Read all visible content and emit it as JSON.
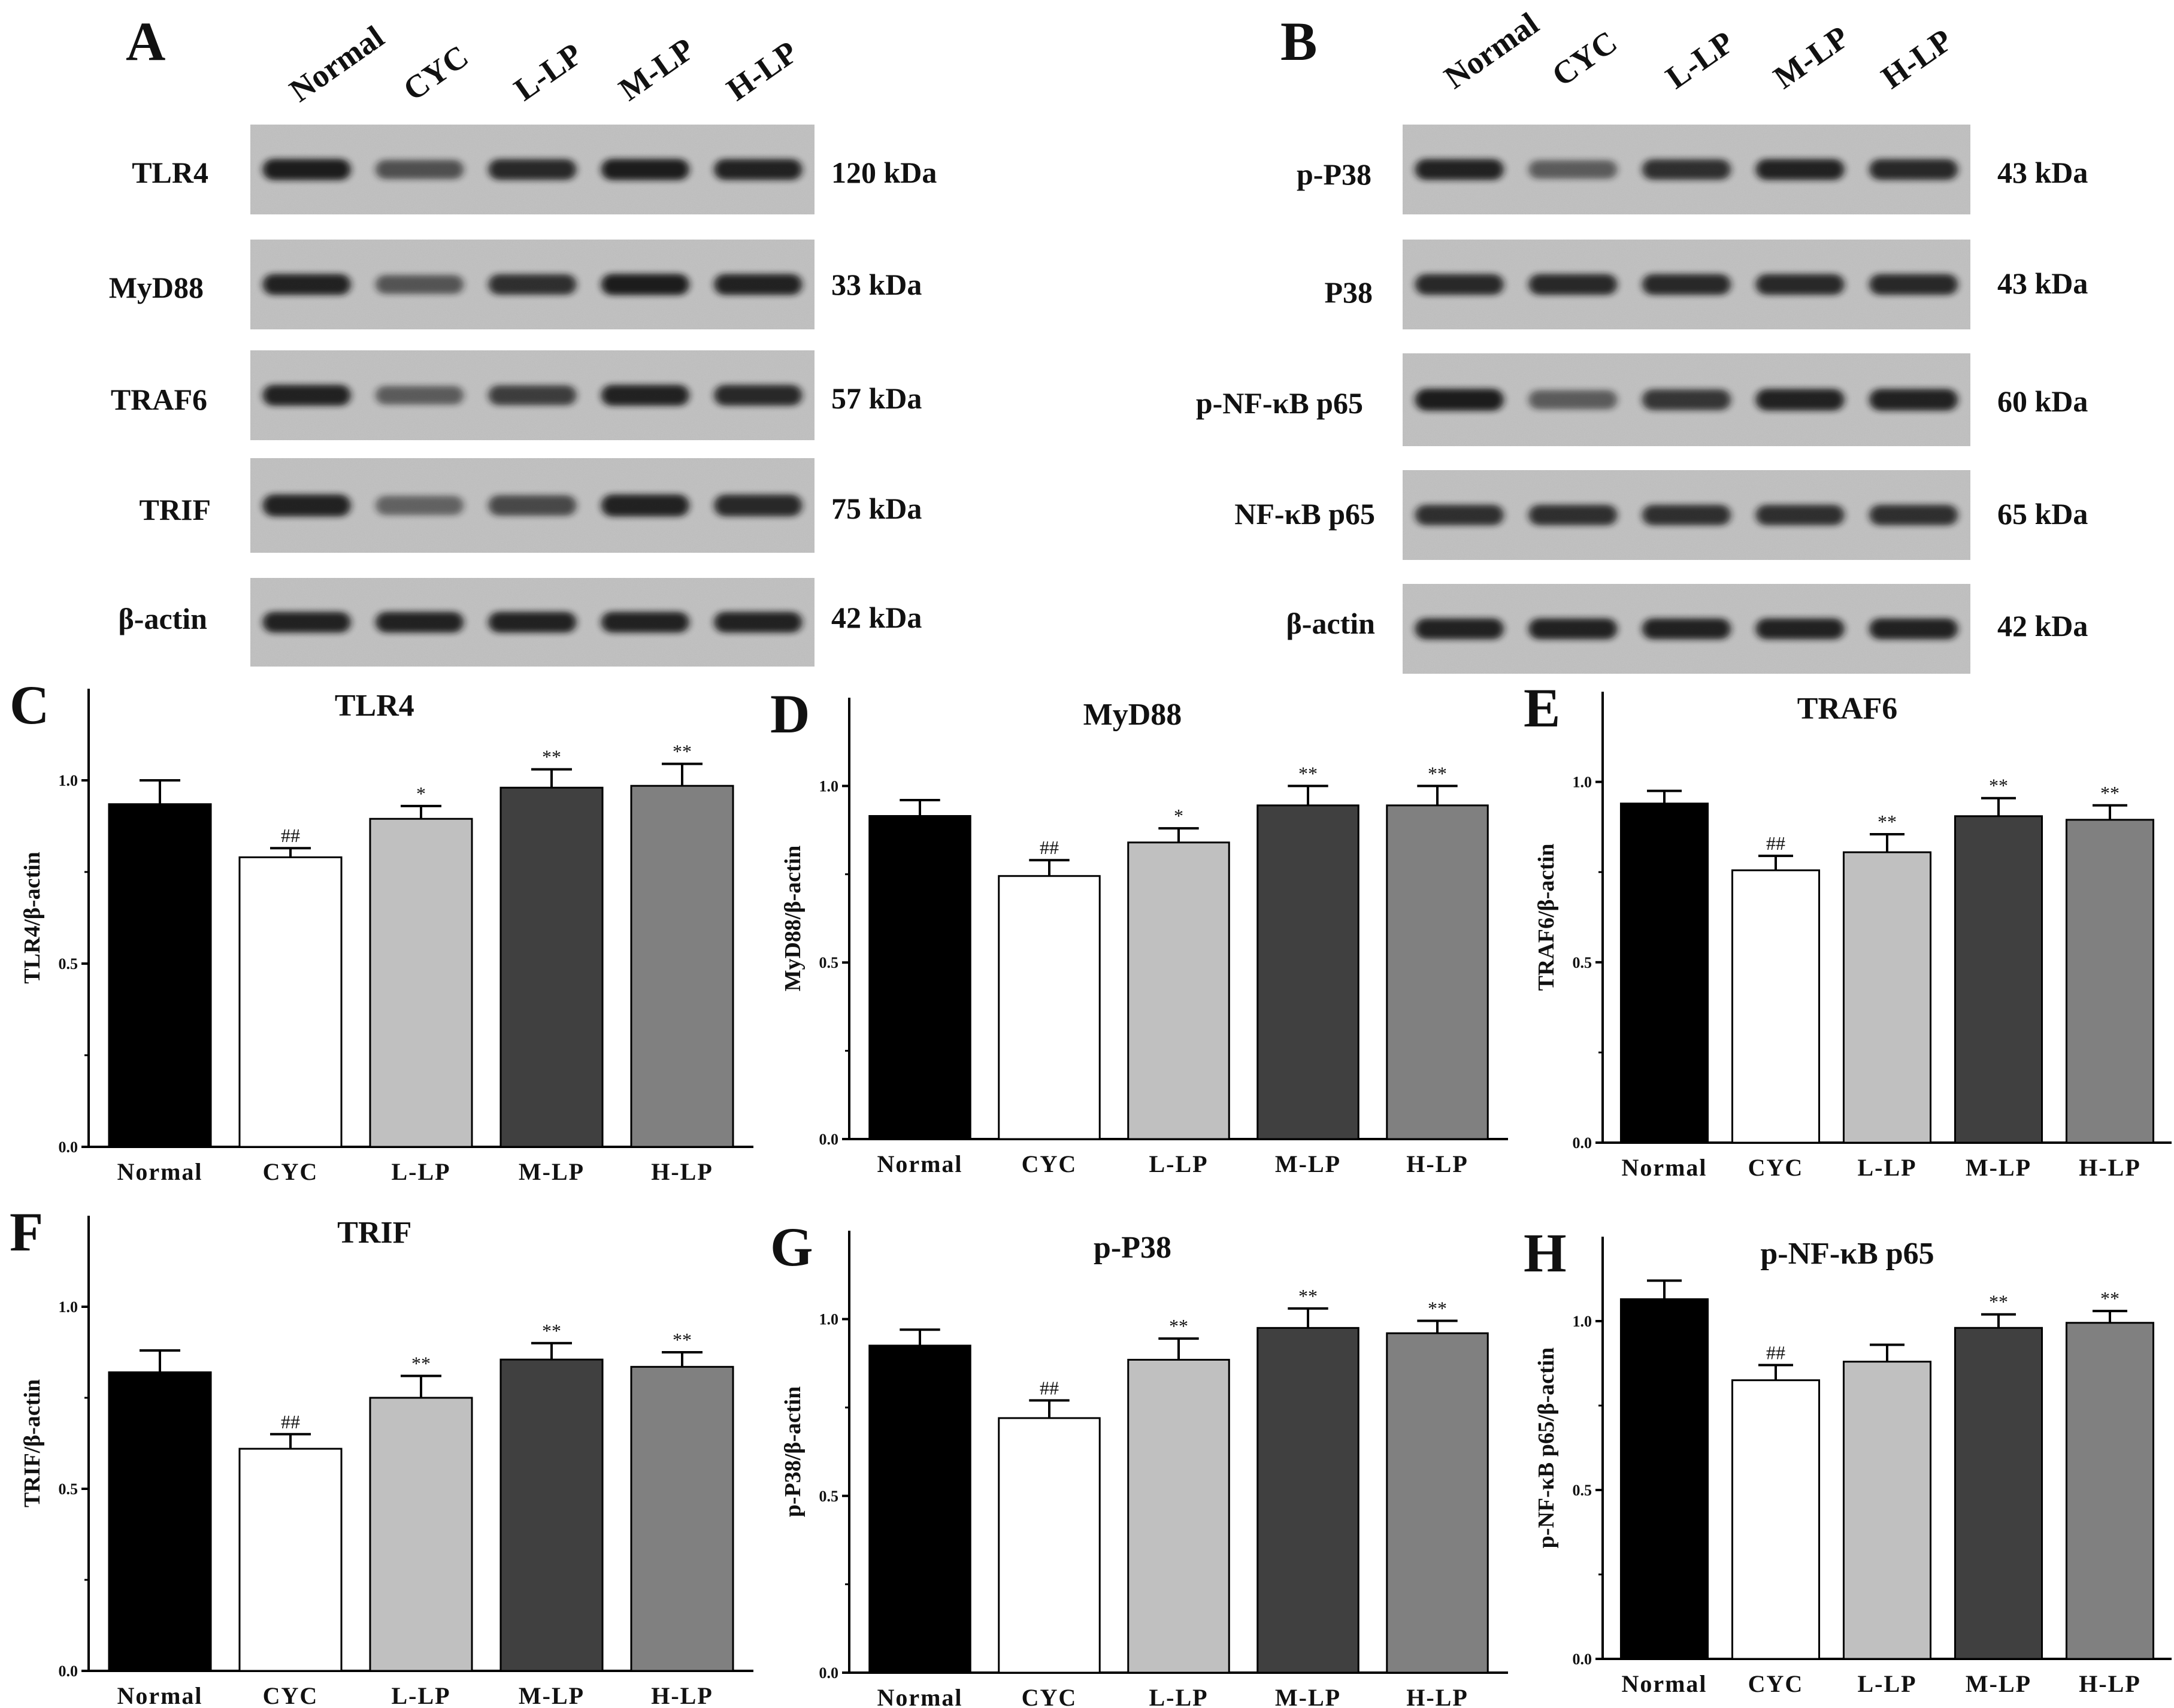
{
  "blots": [
    {
      "panel": "A",
      "lanes": [
        "Normal",
        "CYC",
        "L-LP",
        "M-LP",
        "H-LP"
      ],
      "rows": [
        {
          "protein": "TLR4",
          "kda": "120 kDa",
          "intensity": [
            0.95,
            0.55,
            0.85,
            0.95,
            0.9
          ]
        },
        {
          "protein": "MyD88",
          "kda": "33 kDa",
          "intensity": [
            0.9,
            0.5,
            0.8,
            0.95,
            0.9
          ]
        },
        {
          "protein": "TRAF6",
          "kda": "57 kDa",
          "intensity": [
            0.9,
            0.45,
            0.7,
            0.9,
            0.85
          ]
        },
        {
          "protein": "TRIF",
          "kda": "75 kDa",
          "intensity": [
            0.9,
            0.4,
            0.6,
            0.9,
            0.85
          ]
        },
        {
          "protein": "β-actin",
          "kda": "42 kDa",
          "intensity": [
            0.9,
            0.9,
            0.9,
            0.9,
            0.9
          ]
        }
      ]
    },
    {
      "panel": "B",
      "lanes": [
        "Normal",
        "CYC",
        "L-LP",
        "M-LP",
        "H-LP"
      ],
      "rows": [
        {
          "protein": "p-P38",
          "kda": "43 kDa",
          "intensity": [
            0.9,
            0.45,
            0.8,
            0.9,
            0.85
          ]
        },
        {
          "protein": "P38",
          "kda": "43 kDa",
          "intensity": [
            0.85,
            0.85,
            0.85,
            0.85,
            0.85
          ]
        },
        {
          "protein": "p-NF-κB p65",
          "kda": "60 kDa",
          "intensity": [
            0.95,
            0.45,
            0.75,
            0.9,
            0.9
          ]
        },
        {
          "protein": "NF-κB p65",
          "kda": "65 kDa",
          "intensity": [
            0.8,
            0.8,
            0.8,
            0.8,
            0.8
          ]
        },
        {
          "protein": "β-actin",
          "kda": "42 kDa",
          "intensity": [
            0.9,
            0.9,
            0.9,
            0.9,
            0.9
          ]
        }
      ]
    }
  ],
  "colors": {
    "bar_fills": [
      "#000000",
      "#ffffff",
      "#c0c0c0",
      "#404040",
      "#808080"
    ],
    "blot_bg": "#c6c6c6",
    "band": "#141414"
  },
  "chart_data": [
    {
      "panel": "C",
      "type": "bar",
      "title": "TLR4",
      "ylabel": "TLR4/β-actin",
      "ylim": [
        0,
        1.25
      ],
      "yticks": [
        "0.0",
        "0.5",
        "1.0"
      ],
      "categories": [
        "Normal",
        "CYC",
        "L-LP",
        "M-LP",
        "H-LP"
      ],
      "values": [
        0.935,
        0.79,
        0.895,
        0.98,
        0.985
      ],
      "errors": [
        0.065,
        0.025,
        0.035,
        0.05,
        0.06
      ],
      "annotations": [
        "",
        "##",
        "*",
        "**",
        "**"
      ]
    },
    {
      "panel": "D",
      "type": "bar",
      "title": "MyD88",
      "ylabel": "MyD88/β-actin",
      "ylim": [
        0,
        1.25
      ],
      "yticks": [
        "0.0",
        "0.5",
        "1.0"
      ],
      "categories": [
        "Normal",
        "CYC",
        "L-LP",
        "M-LP",
        "H-LP"
      ],
      "values": [
        0.915,
        0.745,
        0.84,
        0.945,
        0.945
      ],
      "errors": [
        0.045,
        0.045,
        0.04,
        0.055,
        0.055
      ],
      "annotations": [
        "",
        "##",
        "*",
        "**",
        "**"
      ]
    },
    {
      "panel": "E",
      "type": "bar",
      "title": "TRAF6",
      "ylabel": "TRAF6/β-actin",
      "ylim": [
        0,
        1.25
      ],
      "yticks": [
        "0.0",
        "0.5",
        "1.0"
      ],
      "categories": [
        "Normal",
        "CYC",
        "L-LP",
        "M-LP",
        "H-LP"
      ],
      "values": [
        0.94,
        0.755,
        0.805,
        0.905,
        0.895
      ],
      "errors": [
        0.035,
        0.04,
        0.05,
        0.05,
        0.04
      ],
      "annotations": [
        "",
        "##",
        "**",
        "**",
        "**"
      ]
    },
    {
      "panel": "F",
      "type": "bar",
      "title": "TRIF",
      "ylabel": "TRIF/β-actin",
      "ylim": [
        0,
        1.25
      ],
      "yticks": [
        "0.0",
        "0.5",
        "1.0"
      ],
      "categories": [
        "Normal",
        "CYC",
        "L-LP",
        "M-LP",
        "H-LP"
      ],
      "values": [
        0.82,
        0.61,
        0.75,
        0.855,
        0.835
      ],
      "errors": [
        0.06,
        0.04,
        0.06,
        0.045,
        0.04
      ],
      "annotations": [
        "",
        "##",
        "**",
        "**",
        "**"
      ]
    },
    {
      "panel": "G",
      "type": "bar",
      "title": "p-P38",
      "ylabel": "p-P38/β-actin",
      "ylim": [
        0,
        1.25
      ],
      "yticks": [
        "0.0",
        "0.5",
        "1.0"
      ],
      "categories": [
        "Normal",
        "CYC",
        "L-LP",
        "M-LP",
        "H-LP"
      ],
      "values": [
        0.925,
        0.72,
        0.885,
        0.975,
        0.96
      ],
      "errors": [
        0.045,
        0.05,
        0.06,
        0.055,
        0.035
      ],
      "annotations": [
        "",
        "##",
        "**",
        "**",
        "**"
      ]
    },
    {
      "panel": "H",
      "type": "bar",
      "title": "p-NF-κB p65",
      "ylabel": "p-NF-κB p65/β-actin",
      "ylim": [
        0,
        1.25
      ],
      "yticks": [
        "0.0",
        "0.5",
        "1.0"
      ],
      "categories": [
        "Normal",
        "CYC",
        "L-LP",
        "M-LP",
        "H-LP"
      ],
      "values": [
        1.065,
        0.825,
        0.88,
        0.98,
        0.995
      ],
      "errors": [
        0.055,
        0.045,
        0.05,
        0.04,
        0.035
      ],
      "annotations": [
        "",
        "##",
        "",
        "**",
        "**"
      ]
    }
  ]
}
